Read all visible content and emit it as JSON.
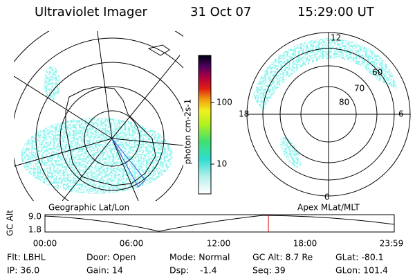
{
  "header": {
    "instrument": "Ultraviolet Imager",
    "date": "31 Oct 07",
    "time": "15:29:00 UT"
  },
  "colorbar": {
    "label": "photon cm-2s-1",
    "ticks": [
      "100",
      "10"
    ]
  },
  "right_map": {
    "labels": [
      "12",
      "18",
      "6",
      "0",
      "60",
      "70",
      "80"
    ]
  },
  "timeline": {
    "left_title": "Geographic Lat/Lon",
    "right_title": "Apex MLat/MLT",
    "axis_label": "GC Alt",
    "yticks": [
      "9.0",
      "1.8"
    ],
    "xticks": [
      "00:00",
      "06:00",
      "12:00",
      "18:00",
      "23:59"
    ]
  },
  "footer": {
    "rows": [
      [
        "Flt: LBHL",
        "Door: Open",
        "Mode: Normal",
        "GC Alt: 8.7 Re",
        "GLat: -80.1"
      ],
      [
        "IP: 36.0",
        "Gain: 14",
        "Dsp:    -1.4",
        "Seq: 39",
        "GLon: 101.4"
      ]
    ]
  }
}
